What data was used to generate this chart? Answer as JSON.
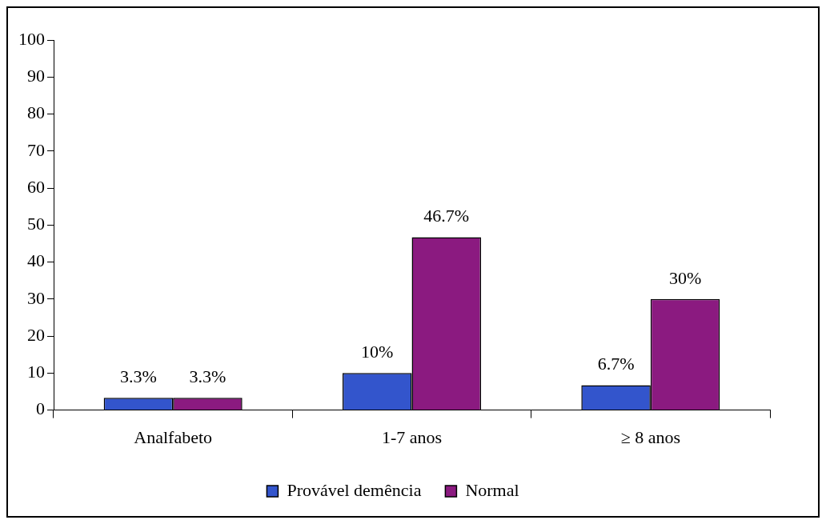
{
  "chart_data": {
    "type": "bar",
    "categories": [
      "Analfabeto",
      "1-7 anos",
      "≥ 8 anos"
    ],
    "series": [
      {
        "name": "Provável demência",
        "color": "#3355cc",
        "values": [
          3.3,
          10,
          6.7
        ],
        "value_labels": [
          "3.3%",
          "10%",
          "6.7%"
        ]
      },
      {
        "name": "Normal",
        "color": "#8b1a80",
        "values": [
          3.3,
          46.7,
          30
        ],
        "value_labels": [
          "3.3%",
          "46.7%",
          "30%"
        ]
      }
    ],
    "ylim": [
      0,
      100
    ],
    "yticks": [
      0,
      10,
      20,
      30,
      40,
      50,
      60,
      70,
      80,
      90,
      100
    ],
    "grid": false,
    "legend": "bottom"
  }
}
